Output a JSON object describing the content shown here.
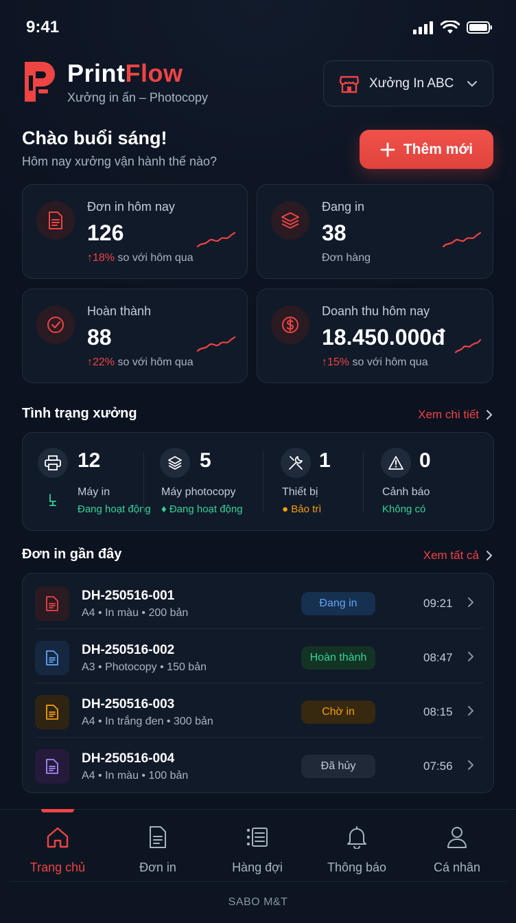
{
  "status_bar": {
    "time": "9:41"
  },
  "brand": {
    "name_part1": "Print",
    "name_part2": "Flow",
    "subtitle": "Xưởng in ấn – Photocopy"
  },
  "store_selector": {
    "label": "Xưởng In ABC"
  },
  "greeting": {
    "title": "Chào buổi sáng!",
    "subtitle": "Hôm nay xưởng vận hành thế nào?"
  },
  "add_button": {
    "label": "Thêm mới"
  },
  "stats": [
    {
      "title": "Đơn in hôm nay",
      "value": "126",
      "change": "18%",
      "suffix": "so với hôm qua"
    },
    {
      "title": "Đang in",
      "value": "38",
      "suffix": "Đơn hàng"
    },
    {
      "title": "Hoàn thành",
      "value": "88",
      "change": "22%",
      "suffix": "so với hôm qua"
    },
    {
      "title": "Doanh thu hôm nay",
      "value": "18.450.000đ",
      "change": "15%",
      "suffix": "so với hôm qua"
    }
  ],
  "workshop": {
    "title": "Tình trạng xưởng",
    "link": "Xem chi tiết",
    "items": [
      {
        "count": "12",
        "label": "Máy in",
        "status": "Đang hoạt động"
      },
      {
        "count": "5",
        "label": "Máy photocopy",
        "status": "Đang hoạt động"
      },
      {
        "count": "1",
        "label": "Thiết bị",
        "status": "Bảo trì"
      },
      {
        "count": "0",
        "label": "Cảnh báo",
        "status": "Không có"
      }
    ]
  },
  "recent_orders": {
    "title": "Đơn in gần đây",
    "link": "Xem tất cả",
    "orders": [
      {
        "code": "DH-250516-001",
        "meta": "A4 • In màu • 200 bản",
        "status": "Đang in",
        "time": "09:21"
      },
      {
        "code": "DH-250516-002",
        "meta": "A3 • Photocopy • 150 bản",
        "status": "Hoàn thành",
        "time": "08:47"
      },
      {
        "code": "DH-250516-003",
        "meta": "A4 • In trắng đen • 300 bản",
        "status": "Chờ in",
        "time": "08:15"
      },
      {
        "code": "DH-250516-004",
        "meta": "A4 • In màu • 100 bản",
        "status": "Đã hủy",
        "time": "07:56"
      }
    ]
  },
  "tabs": [
    {
      "label": "Trang chủ",
      "active": true
    },
    {
      "label": "Đơn in"
    },
    {
      "label": "Hàng đợi"
    },
    {
      "label": "Thông báo"
    },
    {
      "label": "Cá nhân"
    }
  ],
  "footer": "SABO M&T",
  "colors": {
    "accent": "#ef4444",
    "success": "#34d399",
    "warning": "#f59e0b",
    "info": "#60a5fa"
  },
  "icons": [
    "printflow-logo",
    "store-icon",
    "chevron-down-icon",
    "plus-icon",
    "document-icon",
    "layers-icon",
    "check-circle-icon",
    "dollar-icon",
    "printer-icon",
    "tools-icon",
    "warning-icon",
    "home-icon",
    "list-icon",
    "bell-icon",
    "user-icon",
    "chevron-right-icon"
  ]
}
